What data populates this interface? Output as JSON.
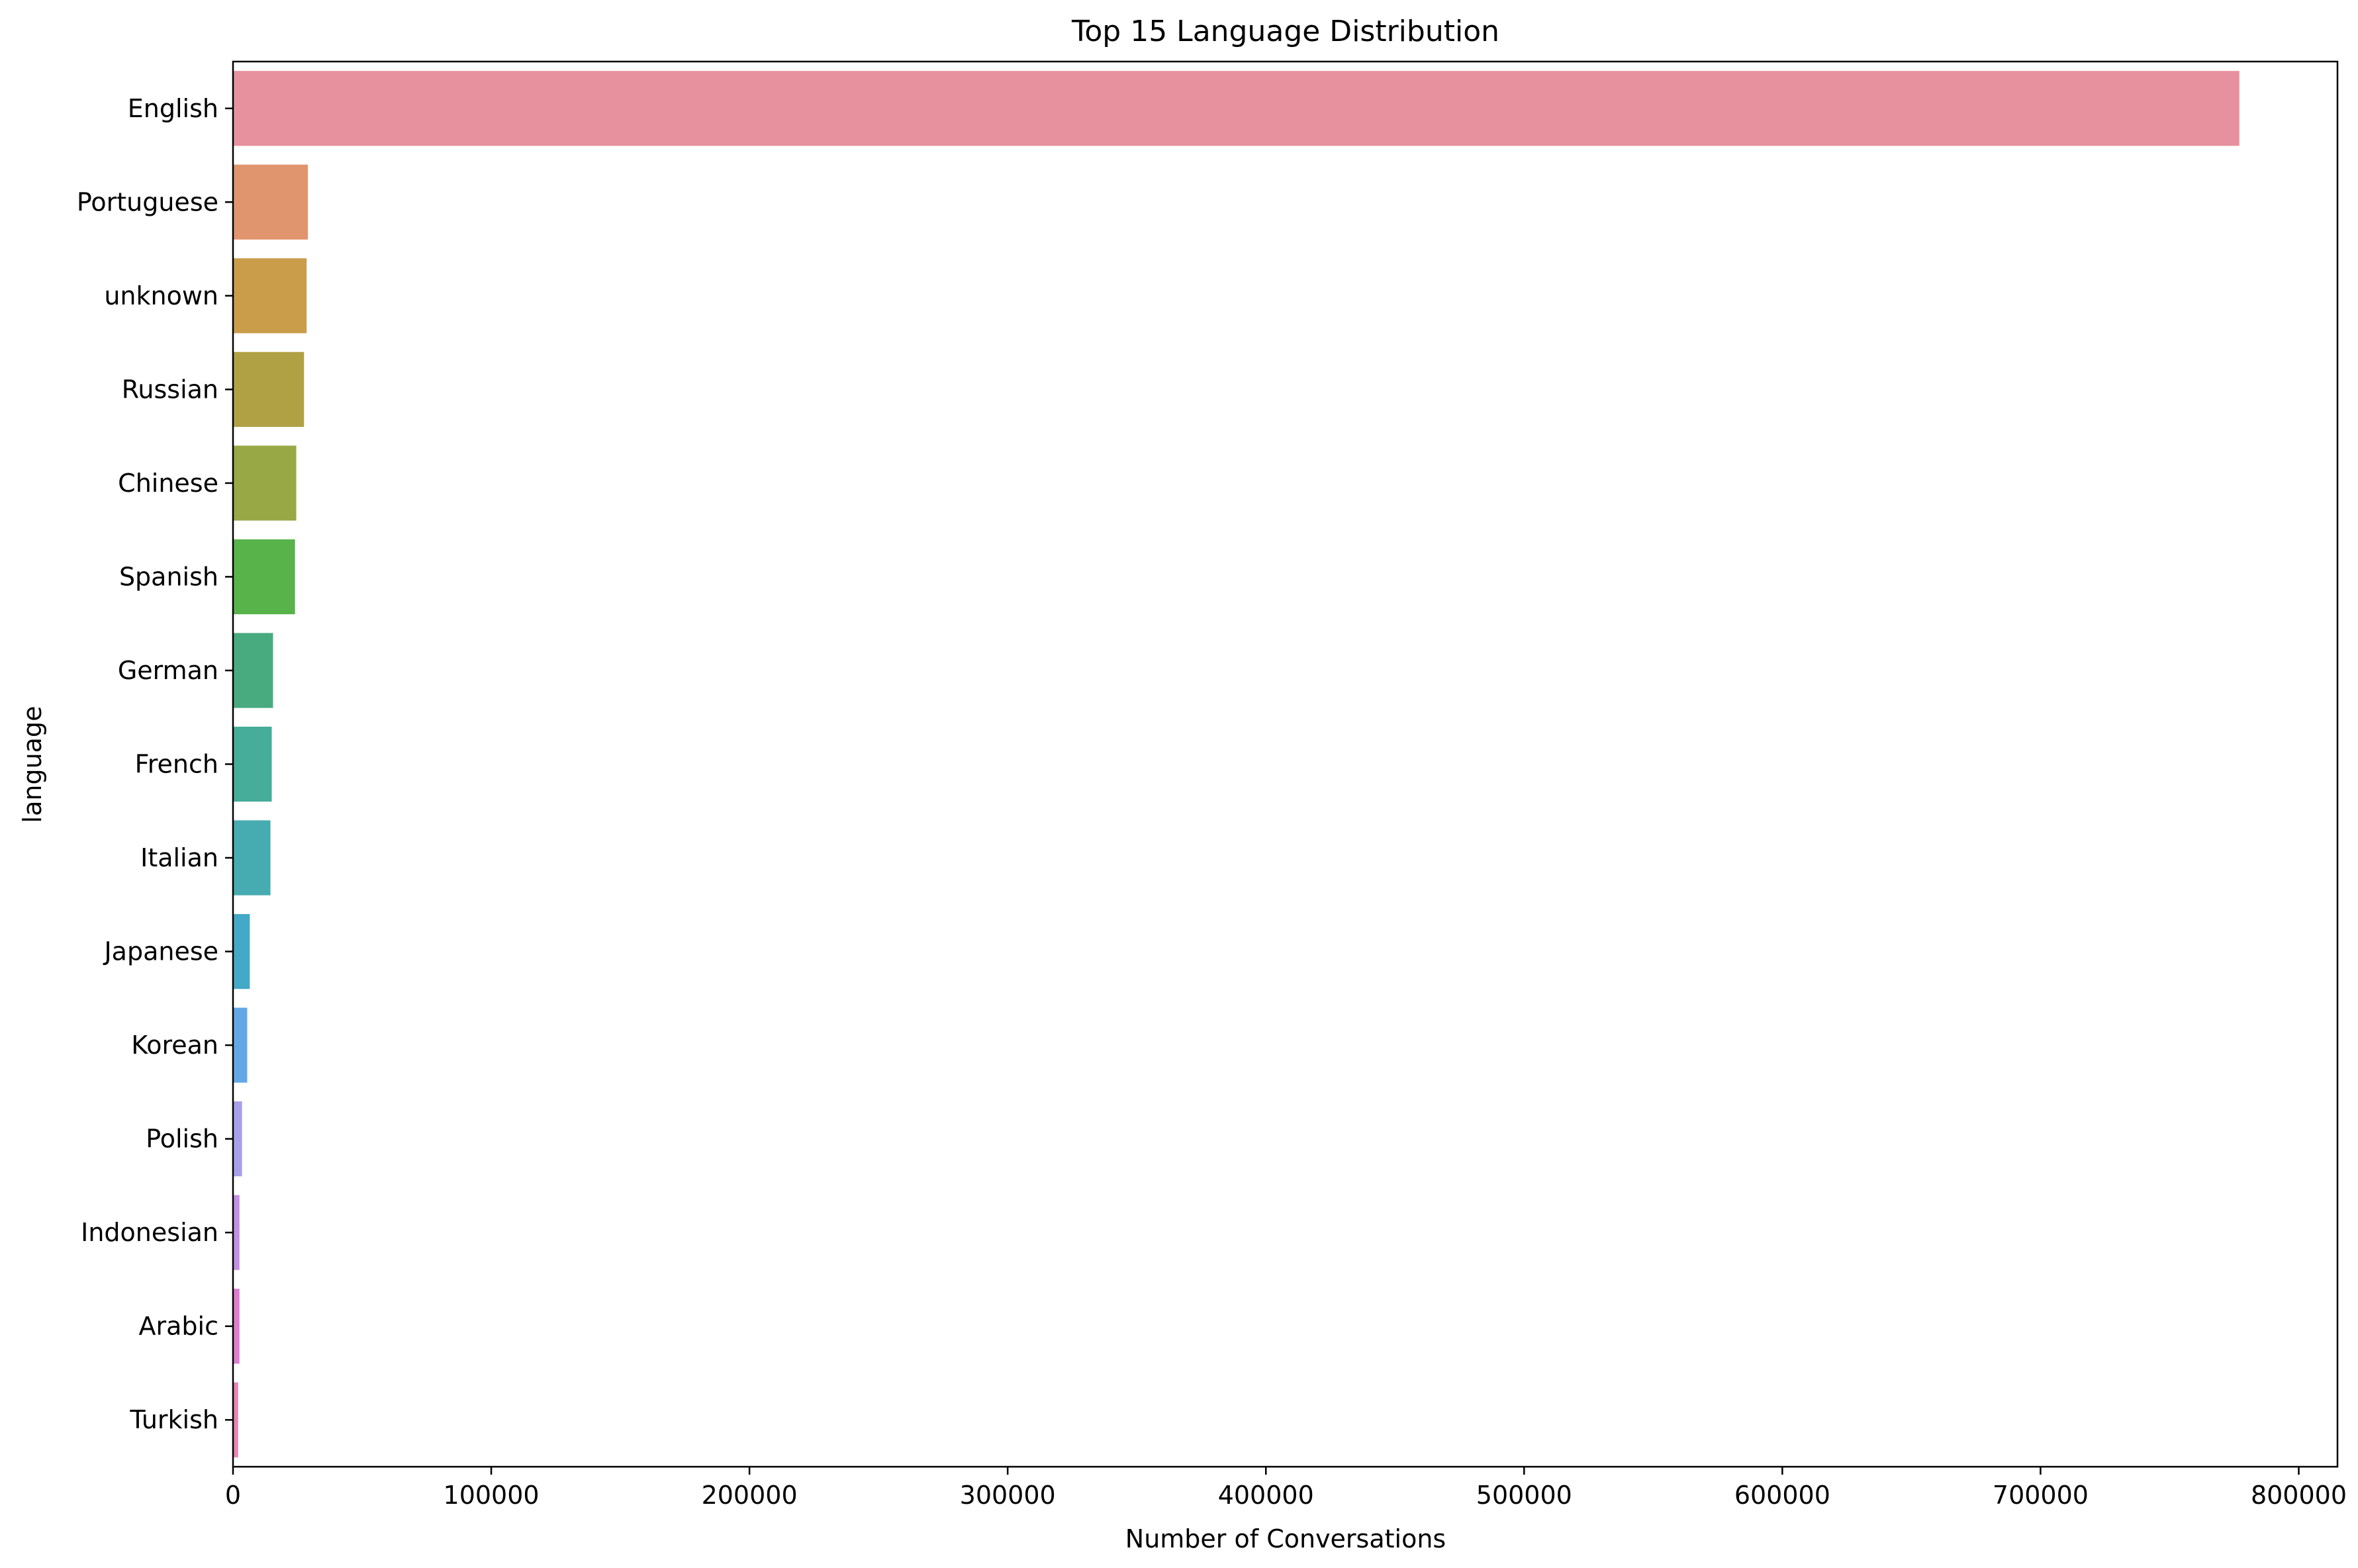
{
  "chart_data": {
    "type": "bar",
    "orientation": "horizontal",
    "title": "Top 15 Language Distribution",
    "xlabel": "Number of Conversations",
    "ylabel": "language",
    "xlim": [
      0,
      815000
    ],
    "x_ticks": [
      0,
      100000,
      200000,
      300000,
      400000,
      500000,
      600000,
      700000,
      800000
    ],
    "x_tick_labels": [
      "0",
      "100000",
      "200000",
      "300000",
      "400000",
      "500000",
      "600000",
      "700000",
      "800000"
    ],
    "grid": false,
    "legend": "none",
    "categories": [
      "English",
      "Portuguese",
      "unknown",
      "Russian",
      "Chinese",
      "Spanish",
      "German",
      "French",
      "Italian",
      "Japanese",
      "Korean",
      "Polish",
      "Indonesian",
      "Arabic",
      "Turkish"
    ],
    "values": [
      777000,
      29000,
      28500,
      27500,
      24500,
      24000,
      15500,
      15000,
      14500,
      6500,
      5500,
      3500,
      2500,
      2500,
      2000
    ],
    "colors": [
      "#e8919e",
      "#e1956e",
      "#ca9d4a",
      "#b0a145",
      "#98a845",
      "#59b34b",
      "#47ab7f",
      "#45ad99",
      "#46acb1",
      "#43a9c6",
      "#62a8e6",
      "#a5a1e8",
      "#c38ee3",
      "#df7cd0",
      "#e585b4"
    ]
  }
}
